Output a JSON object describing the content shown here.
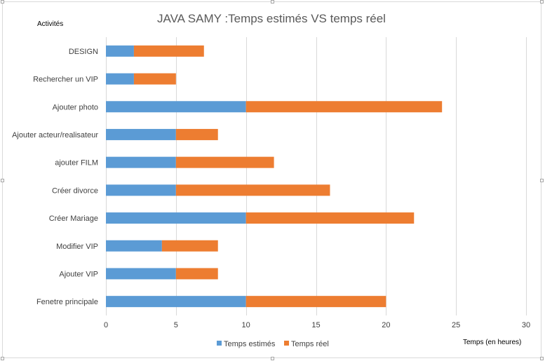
{
  "chart_data": {
    "type": "bar",
    "orientation": "horizontal",
    "stacked": true,
    "title": "JAVA SAMY :Temps estimés VS temps réel",
    "ylabel": "Activités",
    "xlabel": "Temps (en heures)",
    "categories": [
      "DESIGN",
      "Rechercher un VIP",
      "Ajouter photo",
      "Ajouter acteur/realisateur",
      "ajouter FILM",
      "Créer divorce",
      "Créer Mariage",
      "Modifier VIP",
      "Ajouter VIP",
      "Fenetre principale"
    ],
    "series": [
      {
        "name": "Temps estimés",
        "color": "#5B9BD5",
        "values": [
          2,
          2,
          10,
          5,
          5,
          5,
          10,
          4,
          5,
          10
        ]
      },
      {
        "name": "Temps réel",
        "color": "#ED7D31",
        "values": [
          5,
          3,
          14,
          3,
          7,
          11,
          12,
          4,
          3,
          10
        ]
      }
    ],
    "xlim": [
      0,
      30
    ],
    "xticks": [
      "0",
      "5",
      "10",
      "15",
      "20",
      "25",
      "30"
    ],
    "grid": true,
    "legend": "bottom"
  }
}
